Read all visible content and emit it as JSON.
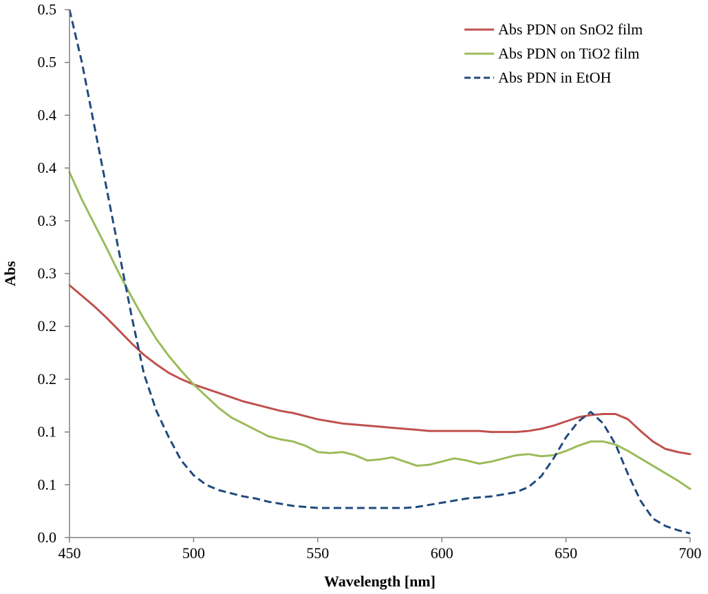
{
  "chart_data": {
    "type": "line",
    "title": "",
    "xlabel": "Wavelength [nm]",
    "ylabel": "Abs",
    "xlim": [
      450,
      700
    ],
    "ylim": [
      0.0,
      0.5
    ],
    "grid": false,
    "legend_position": "top-right",
    "x_ticks": [
      {
        "value": 450,
        "label": "450"
      },
      {
        "value": 500,
        "label": "500"
      },
      {
        "value": 550,
        "label": "550"
      },
      {
        "value": 600,
        "label": "600"
      },
      {
        "value": 650,
        "label": "650"
      },
      {
        "value": 700,
        "label": "700"
      }
    ],
    "y_ticks": [
      {
        "value": 0.0,
        "label": "0.0"
      },
      {
        "value": 0.05,
        "label": "0.1"
      },
      {
        "value": 0.1,
        "label": "0.1"
      },
      {
        "value": 0.15,
        "label": "0.2"
      },
      {
        "value": 0.2,
        "label": "0.2"
      },
      {
        "value": 0.25,
        "label": "0.3"
      },
      {
        "value": 0.3,
        "label": "0.3"
      },
      {
        "value": 0.35,
        "label": "0.4"
      },
      {
        "value": 0.4,
        "label": "0.4"
      },
      {
        "value": 0.45,
        "label": "0.5"
      },
      {
        "value": 0.5,
        "label": "0.5"
      }
    ],
    "series": [
      {
        "name": "Abs PDN on SnO2 film",
        "color": "#c0504d",
        "dash": "solid",
        "x": [
          450,
          455,
          460,
          465,
          470,
          475,
          480,
          485,
          490,
          495,
          500,
          505,
          510,
          515,
          520,
          525,
          530,
          535,
          540,
          545,
          550,
          555,
          560,
          565,
          570,
          575,
          580,
          585,
          590,
          595,
          600,
          605,
          610,
          615,
          620,
          625,
          630,
          635,
          640,
          645,
          650,
          655,
          660,
          665,
          670,
          675,
          680,
          685,
          690,
          695,
          700
        ],
        "y": [
          0.239,
          0.229,
          0.219,
          0.208,
          0.196,
          0.184,
          0.173,
          0.164,
          0.156,
          0.15,
          0.145,
          0.141,
          0.137,
          0.133,
          0.129,
          0.126,
          0.123,
          0.12,
          0.118,
          0.115,
          0.112,
          0.11,
          0.108,
          0.107,
          0.106,
          0.105,
          0.104,
          0.103,
          0.102,
          0.101,
          0.101,
          0.101,
          0.101,
          0.101,
          0.1,
          0.1,
          0.1,
          0.101,
          0.103,
          0.106,
          0.11,
          0.114,
          0.116,
          0.117,
          0.117,
          0.112,
          0.101,
          0.091,
          0.084,
          0.081,
          0.079
        ]
      },
      {
        "name": "Abs PDN on TiO2 film",
        "color": "#9bbb59",
        "dash": "solid",
        "x": [
          450,
          455,
          460,
          465,
          470,
          475,
          480,
          485,
          490,
          495,
          500,
          505,
          510,
          515,
          520,
          525,
          530,
          535,
          540,
          545,
          550,
          555,
          560,
          565,
          570,
          575,
          580,
          585,
          590,
          595,
          600,
          605,
          610,
          615,
          620,
          625,
          630,
          635,
          640,
          645,
          650,
          655,
          660,
          665,
          670,
          675,
          680,
          685,
          690,
          695,
          700
        ],
        "y": [
          0.346,
          0.32,
          0.297,
          0.274,
          0.25,
          0.228,
          0.207,
          0.188,
          0.172,
          0.158,
          0.145,
          0.134,
          0.123,
          0.114,
          0.108,
          0.102,
          0.096,
          0.093,
          0.091,
          0.087,
          0.081,
          0.08,
          0.081,
          0.078,
          0.073,
          0.074,
          0.076,
          0.072,
          0.068,
          0.069,
          0.072,
          0.075,
          0.073,
          0.07,
          0.072,
          0.075,
          0.078,
          0.079,
          0.077,
          0.078,
          0.082,
          0.087,
          0.091,
          0.091,
          0.088,
          0.082,
          0.075,
          0.068,
          0.061,
          0.054,
          0.046
        ]
      },
      {
        "name": "Abs PDN in EtOH",
        "color": "#1f497d",
        "dash": "dashed",
        "x": [
          450,
          455,
          460,
          465,
          470,
          475,
          480,
          485,
          490,
          495,
          500,
          505,
          510,
          515,
          520,
          525,
          530,
          535,
          540,
          545,
          550,
          555,
          560,
          565,
          570,
          575,
          580,
          585,
          590,
          595,
          600,
          605,
          610,
          615,
          620,
          625,
          630,
          635,
          640,
          645,
          650,
          655,
          660,
          665,
          670,
          675,
          680,
          685,
          690,
          695,
          700
        ],
        "y": [
          0.5,
          0.45,
          0.39,
          0.33,
          0.27,
          0.21,
          0.155,
          0.12,
          0.095,
          0.073,
          0.059,
          0.05,
          0.045,
          0.042,
          0.039,
          0.037,
          0.034,
          0.032,
          0.03,
          0.029,
          0.028,
          0.028,
          0.028,
          0.028,
          0.028,
          0.028,
          0.028,
          0.028,
          0.029,
          0.031,
          0.033,
          0.035,
          0.037,
          0.038,
          0.039,
          0.041,
          0.043,
          0.048,
          0.058,
          0.075,
          0.095,
          0.11,
          0.119,
          0.108,
          0.088,
          0.06,
          0.035,
          0.018,
          0.011,
          0.007,
          0.004
        ]
      }
    ]
  }
}
